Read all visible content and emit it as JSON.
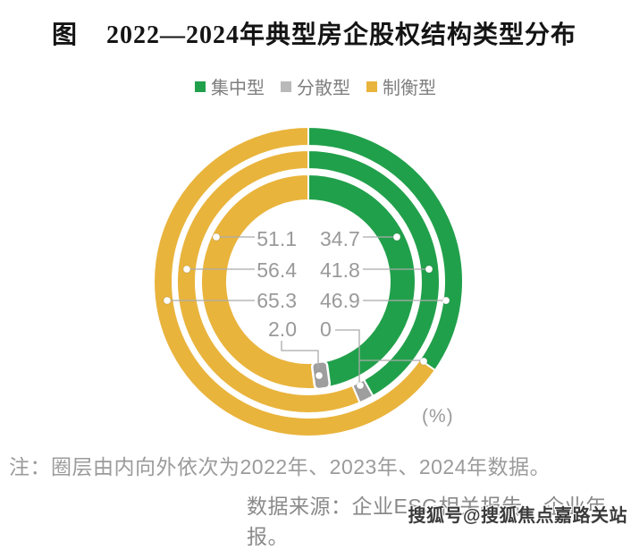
{
  "title": "图    2022—2024年典型房企股权结构类型分布",
  "legend": [
    {
      "label": "集中型",
      "color": "#21A04B"
    },
    {
      "label": "分散型",
      "color": "#B9B9B9"
    },
    {
      "label": "制衡型",
      "color": "#E9B43C"
    }
  ],
  "unit_label": "(%)",
  "note": "注：圈层由内向外依次为2022年、2023年、2024年数据。",
  "source": "数据来源：企业ESG相关报告、企业年报。",
  "watermark": "搜狐号@搜狐焦点嘉路关站",
  "chart_data": {
    "type": "pie",
    "subtype": "multi-ring donut",
    "unit": "%",
    "title": "2022—2024年典型房企股权结构类型分布",
    "ring_order_note": "圈层由内向外依次为2022年、2023年、2024年数据",
    "categories": [
      "集中型",
      "分散型",
      "制衡型"
    ],
    "colors": {
      "集中型": "#21A04B",
      "分散型": "#9E9E9E",
      "制衡型": "#E9B43C"
    },
    "rings": [
      {
        "year": "2022",
        "position": "inner",
        "values": {
          "集中型": "46.9",
          "分散型": "2.0",
          "制衡型": "51.1"
        }
      },
      {
        "year": "2023",
        "position": "middle",
        "values": {
          "集中型": "41.8",
          "分散型": "1.8",
          "制衡型": "56.4"
        }
      },
      {
        "year": "2024",
        "position": "outer",
        "values": {
          "集中型": "34.7",
          "分散型": "0",
          "制衡型": "65.3"
        }
      }
    ],
    "center_labels": {
      "left_category": "制衡型",
      "right_category": "集中型",
      "rows": [
        {
          "left": "51.1",
          "right": "34.7"
        },
        {
          "left": "56.4",
          "right": "41.8"
        },
        {
          "left": "65.3",
          "right": "46.9"
        },
        {
          "left": "2.0",
          "right": "0"
        }
      ]
    },
    "legend_position": "top"
  }
}
